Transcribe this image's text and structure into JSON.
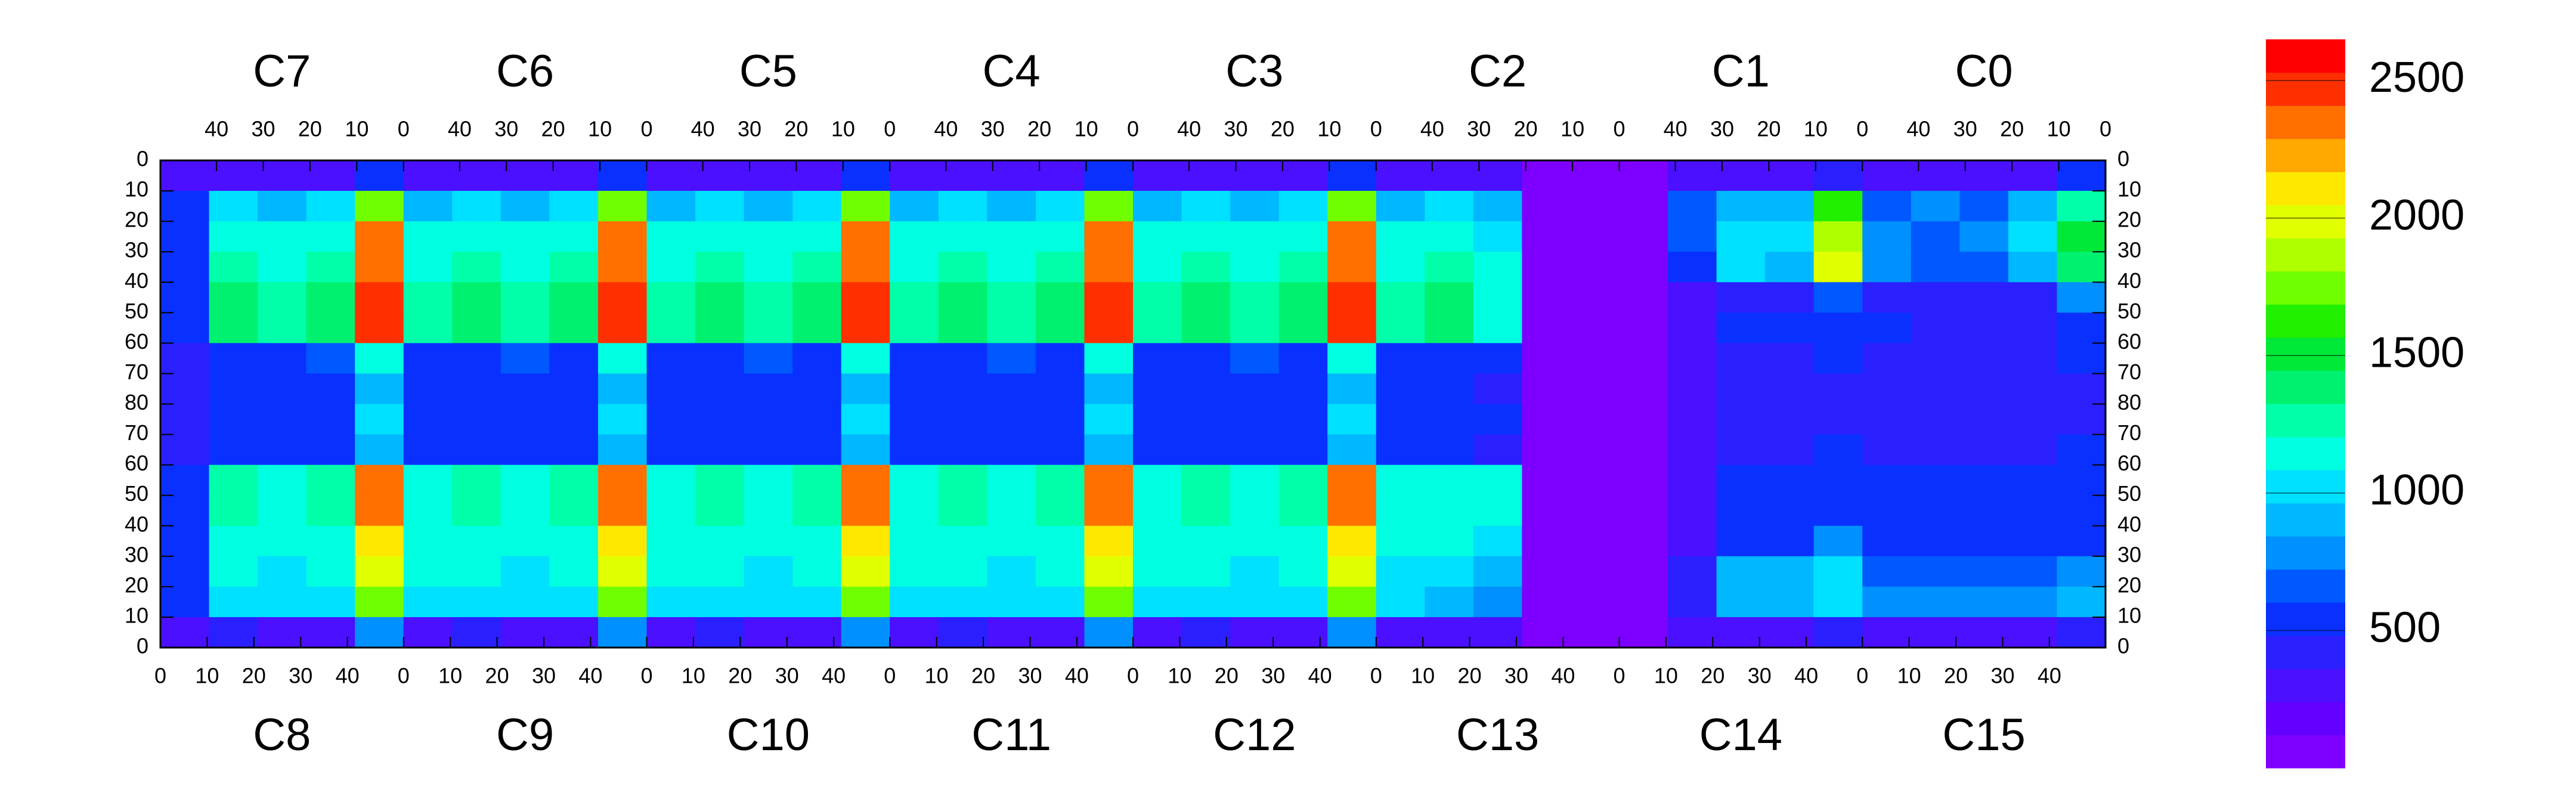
{
  "chart_data": {
    "type": "heatmap",
    "top_labels": [
      "C7",
      "C6",
      "C5",
      "C4",
      "C3",
      "C2",
      "C1",
      "C0"
    ],
    "bottom_labels": [
      "C8",
      "C9",
      "C10",
      "C11",
      "C12",
      "C13",
      "C14",
      "C15"
    ],
    "xlim": [
      0,
      416
    ],
    "x2lim": [
      0,
      416
    ],
    "ylim": [
      0,
      160
    ],
    "zlim": [
      0,
      2650
    ],
    "xticks": [
      0,
      10,
      20,
      30,
      40,
      {
        "value": 52,
        "label": "0"
      },
      {
        "value": 62,
        "label": "10"
      },
      {
        "value": 72,
        "label": "20"
      },
      {
        "value": 82,
        "label": "30"
      },
      {
        "value": 92,
        "label": "40"
      },
      {
        "value": 104,
        "label": "0"
      },
      {
        "value": 114,
        "label": "10"
      },
      {
        "value": 124,
        "label": "20"
      },
      {
        "value": 134,
        "label": "30"
      },
      {
        "value": 144,
        "label": "40"
      },
      {
        "value": 156,
        "label": "0"
      },
      {
        "value": 166,
        "label": "10"
      },
      {
        "value": 176,
        "label": "20"
      },
      {
        "value": 186,
        "label": "30"
      },
      {
        "value": 196,
        "label": "40"
      },
      {
        "value": 208,
        "label": "0"
      },
      {
        "value": 218,
        "label": "10"
      },
      {
        "value": 228,
        "label": "20"
      },
      {
        "value": 238,
        "label": "30"
      },
      {
        "value": 248,
        "label": "40"
      },
      {
        "value": 260,
        "label": "0"
      },
      {
        "value": 270,
        "label": "10"
      },
      {
        "value": 280,
        "label": "20"
      },
      {
        "value": 290,
        "label": "30"
      },
      {
        "value": 300,
        "label": "40"
      },
      {
        "value": 312,
        "label": "0"
      },
      {
        "value": 322,
        "label": "10"
      },
      {
        "value": 332,
        "label": "20"
      },
      {
        "value": 342,
        "label": "30"
      },
      {
        "value": 352,
        "label": "40"
      },
      {
        "value": 364,
        "label": "0"
      },
      {
        "value": 374,
        "label": "10"
      },
      {
        "value": 384,
        "label": "20"
      },
      {
        "value": 394,
        "label": "30"
      },
      {
        "value": 404,
        "label": "40"
      }
    ],
    "x2ticks": [
      {
        "value": 12,
        "label": "40"
      },
      {
        "value": 22,
        "label": "30"
      },
      {
        "value": 32,
        "label": "20"
      },
      {
        "value": 42,
        "label": "10"
      },
      {
        "value": 52,
        "label": "0"
      },
      {
        "value": 64,
        "label": "40"
      },
      {
        "value": 74,
        "label": "30"
      },
      {
        "value": 84,
        "label": "20"
      },
      {
        "value": 94,
        "label": "10"
      },
      {
        "value": 104,
        "label": "0"
      },
      {
        "value": 116,
        "label": "40"
      },
      {
        "value": 126,
        "label": "30"
      },
      {
        "value": 136,
        "label": "20"
      },
      {
        "value": 146,
        "label": "10"
      },
      {
        "value": 156,
        "label": "0"
      },
      {
        "value": 168,
        "label": "40"
      },
      {
        "value": 178,
        "label": "30"
      },
      {
        "value": 188,
        "label": "20"
      },
      {
        "value": 198,
        "label": "10"
      },
      {
        "value": 208,
        "label": "0"
      },
      {
        "value": 220,
        "label": "40"
      },
      {
        "value": 230,
        "label": "30"
      },
      {
        "value": 240,
        "label": "20"
      },
      {
        "value": 250,
        "label": "10"
      },
      {
        "value": 260,
        "label": "0"
      },
      {
        "value": 272,
        "label": "40"
      },
      {
        "value": 282,
        "label": "30"
      },
      {
        "value": 292,
        "label": "20"
      },
      {
        "value": 302,
        "label": "10"
      },
      {
        "value": 312,
        "label": "0"
      },
      {
        "value": 324,
        "label": "40"
      },
      {
        "value": 334,
        "label": "30"
      },
      {
        "value": 344,
        "label": "20"
      },
      {
        "value": 354,
        "label": "10"
      },
      {
        "value": 364,
        "label": "0"
      },
      {
        "value": 376,
        "label": "40"
      },
      {
        "value": 386,
        "label": "30"
      },
      {
        "value": 396,
        "label": "20"
      },
      {
        "value": 406,
        "label": "10"
      },
      {
        "value": 416,
        "label": "0"
      }
    ],
    "yticks": [
      0,
      10,
      20,
      30,
      40,
      50,
      60,
      70,
      80,
      {
        "value": 90,
        "label": "70"
      },
      {
        "value": 100,
        "label": "60"
      },
      {
        "value": 110,
        "label": "50"
      },
      {
        "value": 120,
        "label": "40"
      },
      {
        "value": 130,
        "label": "30"
      },
      {
        "value": 140,
        "label": "20"
      },
      {
        "value": 150,
        "label": "10"
      },
      {
        "value": 160,
        "label": "0"
      }
    ],
    "zticks": [
      500,
      1000,
      1500,
      2000,
      2500
    ],
    "colors": [
      "#7d00ff",
      "#6400ff",
      "#4a10ff",
      "#2a20ff",
      "#0a30ff",
      "#0058ff",
      "#0090ff",
      "#00b8ff",
      "#00e0ff",
      "#00ffe0",
      "#00ffa8",
      "#00f070",
      "#00e838",
      "#20f000",
      "#70ff00",
      "#b0ff00",
      "#e0ff00",
      "#ffe800",
      "#ffa800",
      "#ff7000",
      "#ff3000",
      "#ff0000"
    ],
    "z": [
      [
        250,
        300,
        300,
        300,
        500,
        250,
        300,
        300,
        300,
        500,
        250,
        300,
        300,
        300,
        500,
        250,
        300,
        300,
        300,
        500,
        250,
        300,
        300,
        300,
        500,
        250,
        300,
        300,
        100,
        100,
        100,
        300,
        300,
        300,
        400,
        300,
        300,
        300,
        300,
        500
      ],
      [
        500,
        1000,
        900,
        1000,
        1800,
        900,
        1000,
        900,
        1000,
        1800,
        900,
        1000,
        900,
        1000,
        1800,
        900,
        1000,
        900,
        1000,
        1800,
        900,
        1000,
        900,
        1000,
        1800,
        900,
        1000,
        900,
        100,
        100,
        100,
        700,
        900,
        900,
        1600,
        700,
        800,
        700,
        900,
        1300
      ],
      [
        500,
        1200,
        1100,
        1200,
        2300,
        1100,
        1200,
        1100,
        1200,
        2300,
        1100,
        1200,
        1100,
        1200,
        2300,
        1100,
        1200,
        1100,
        1200,
        2300,
        1100,
        1200,
        1100,
        1200,
        2300,
        1100,
        1200,
        1000,
        100,
        100,
        100,
        700,
        1000,
        1000,
        1900,
        800,
        700,
        800,
        1000,
        1500
      ],
      [
        500,
        1300,
        1200,
        1300,
        2400,
        1200,
        1300,
        1200,
        1300,
        2400,
        1200,
        1300,
        1200,
        1300,
        2400,
        1200,
        1300,
        1200,
        1300,
        2400,
        1200,
        1300,
        1200,
        1300,
        2400,
        1200,
        1300,
        1100,
        100,
        100,
        100,
        600,
        1000,
        900,
        2000,
        800,
        700,
        700,
        900,
        1400
      ],
      [
        500,
        1400,
        1300,
        1400,
        2500,
        1300,
        1400,
        1300,
        1400,
        2500,
        1300,
        1400,
        1300,
        1400,
        2500,
        1300,
        1400,
        1300,
        1400,
        2500,
        1300,
        1400,
        1300,
        1400,
        2500,
        1300,
        1400,
        1200,
        100,
        100,
        100,
        300,
        450,
        450,
        700,
        450,
        450,
        450,
        450,
        800
      ],
      [
        500,
        1400,
        1300,
        1400,
        2500,
        1300,
        1400,
        1300,
        1400,
        2500,
        1300,
        1400,
        1300,
        1400,
        2500,
        1300,
        1400,
        1300,
        1400,
        2500,
        1300,
        1400,
        1300,
        1400,
        2500,
        1300,
        1400,
        1200,
        100,
        100,
        100,
        300,
        500,
        500,
        600,
        500,
        450,
        450,
        450,
        600
      ],
      [
        450,
        600,
        600,
        650,
        1100,
        600,
        600,
        650,
        600,
        1100,
        600,
        600,
        650,
        600,
        1100,
        600,
        600,
        650,
        600,
        1100,
        600,
        600,
        650,
        600,
        1100,
        600,
        600,
        500,
        100,
        100,
        100,
        300,
        450,
        450,
        500,
        450,
        450,
        450,
        450,
        500
      ],
      [
        450,
        550,
        500,
        500,
        900,
        500,
        550,
        500,
        500,
        900,
        500,
        550,
        500,
        500,
        900,
        500,
        550,
        500,
        500,
        900,
        500,
        550,
        500,
        500,
        900,
        500,
        500,
        450,
        100,
        100,
        100,
        300,
        400,
        400,
        450,
        400,
        400,
        400,
        400,
        450
      ],
      [
        450,
        600,
        550,
        550,
        1000,
        600,
        600,
        550,
        550,
        1000,
        600,
        600,
        550,
        550,
        1000,
        600,
        600,
        550,
        550,
        1000,
        600,
        600,
        550,
        550,
        1000,
        600,
        550,
        500,
        100,
        100,
        100,
        300,
        400,
        400,
        450,
        400,
        400,
        400,
        400,
        450
      ],
      [
        450,
        550,
        500,
        500,
        900,
        550,
        550,
        500,
        500,
        900,
        550,
        550,
        500,
        500,
        900,
        550,
        550,
        500,
        500,
        900,
        550,
        550,
        500,
        500,
        900,
        550,
        500,
        450,
        100,
        100,
        100,
        300,
        450,
        450,
        500,
        450,
        450,
        450,
        450,
        500
      ],
      [
        500,
        1300,
        1200,
        1300,
        2300,
        1200,
        1300,
        1200,
        1300,
        2300,
        1200,
        1300,
        1200,
        1300,
        2300,
        1200,
        1300,
        1200,
        1300,
        2300,
        1200,
        1300,
        1200,
        1300,
        2300,
        1200,
        1200,
        1100,
        100,
        100,
        100,
        300,
        500,
        500,
        600,
        500,
        500,
        500,
        500,
        550
      ],
      [
        500,
        1300,
        1200,
        1300,
        2300,
        1200,
        1300,
        1200,
        1300,
        2300,
        1200,
        1300,
        1200,
        1300,
        2300,
        1200,
        1300,
        1200,
        1300,
        2300,
        1200,
        1300,
        1200,
        1300,
        2300,
        1200,
        1200,
        1100,
        100,
        100,
        100,
        300,
        500,
        500,
        600,
        500,
        500,
        500,
        500,
        550
      ],
      [
        500,
        1200,
        1100,
        1200,
        2100,
        1100,
        1200,
        1100,
        1200,
        2100,
        1100,
        1200,
        1100,
        1200,
        2100,
        1100,
        1200,
        1100,
        1200,
        2100,
        1100,
        1200,
        1100,
        1200,
        2100,
        1100,
        1100,
        1000,
        100,
        100,
        100,
        350,
        600,
        600,
        800,
        550,
        550,
        550,
        550,
        600
      ],
      [
        500,
        1200,
        1000,
        1100,
        2000,
        1100,
        1200,
        1000,
        1100,
        2000,
        1100,
        1200,
        1000,
        1100,
        2000,
        1100,
        1200,
        1000,
        1100,
        2000,
        1100,
        1200,
        1000,
        1100,
        2000,
        1000,
        1000,
        900,
        100,
        100,
        100,
        400,
        900,
        900,
        1000,
        700,
        700,
        700,
        700,
        800
      ],
      [
        500,
        1000,
        1000,
        1000,
        1800,
        1000,
        1000,
        1000,
        1000,
        1800,
        1000,
        1000,
        1000,
        1000,
        1800,
        1000,
        1000,
        1000,
        1000,
        1800,
        1000,
        1000,
        1000,
        1000,
        1800,
        1000,
        900,
        800,
        100,
        100,
        100,
        400,
        900,
        900,
        1000,
        800,
        800,
        800,
        800,
        900
      ],
      [
        300,
        400,
        300,
        300,
        800,
        300,
        400,
        300,
        300,
        800,
        300,
        400,
        300,
        300,
        800,
        300,
        400,
        300,
        300,
        800,
        300,
        400,
        300,
        300,
        800,
        300,
        300,
        300,
        100,
        100,
        100,
        300,
        300,
        300,
        400,
        300,
        300,
        250,
        250,
        400
      ]
    ]
  }
}
